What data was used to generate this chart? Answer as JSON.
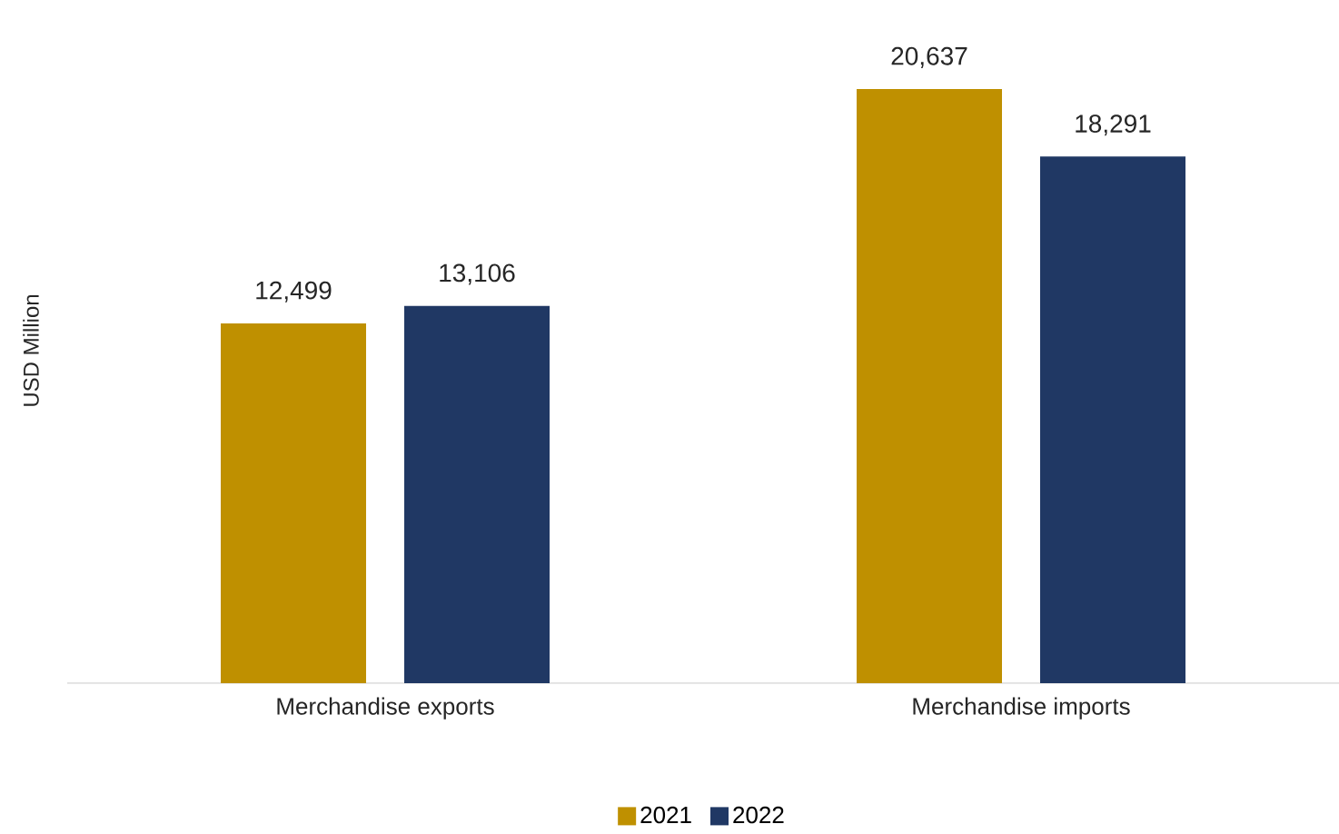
{
  "chart_data": {
    "type": "bar",
    "ylabel": "USD Million",
    "categories": [
      "Merchandise exports",
      "Merchandise imports"
    ],
    "series": [
      {
        "name": "2021",
        "color": "#bf9000",
        "values": [
          12499,
          20637
        ],
        "value_labels": [
          "12,499",
          "20,637"
        ]
      },
      {
        "name": "2022",
        "color": "#203864",
        "values": [
          13106,
          18291
        ],
        "value_labels": [
          "13,106",
          "18,291"
        ]
      }
    ],
    "legend": "bottom"
  }
}
